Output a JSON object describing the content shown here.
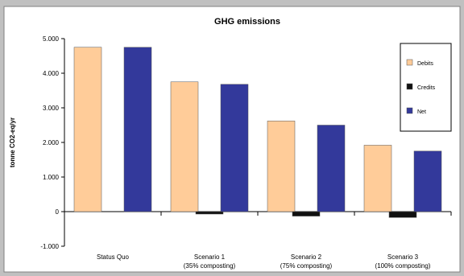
{
  "chart_data": {
    "type": "bar",
    "title": "GHG emissions",
    "xlabel": "",
    "ylabel": "tonne CO2-eq/yr",
    "ylim": [
      -1000,
      5000
    ],
    "yticks": [
      5000,
      4000,
      3000,
      2000,
      1000,
      0,
      -1000
    ],
    "ytick_labels": [
      "5.000",
      "4.000",
      "3.000",
      "2.000",
      "1.000",
      "0",
      "-1.000"
    ],
    "categories": [
      [
        "Status Quo"
      ],
      [
        "Scenario 1",
        "(35% composting)"
      ],
      [
        "Scenario 2",
        "(75% composting)"
      ],
      [
        "Scenario 3",
        "(100% composting)"
      ]
    ],
    "series": [
      {
        "name": "Debits",
        "color": "#FFCC99",
        "values": [
          4750,
          3750,
          2620,
          1920
        ]
      },
      {
        "name": "Credits",
        "color": "#111111",
        "values": [
          0,
          -70,
          -130,
          -170
        ]
      },
      {
        "name": "Net",
        "color": "#33399B",
        "values": [
          4750,
          3680,
          2500,
          1750
        ]
      }
    ],
    "legend_position": "top-right",
    "grid": false,
    "background": "#C0C0C0",
    "plot_background": "#FFFFFF"
  }
}
